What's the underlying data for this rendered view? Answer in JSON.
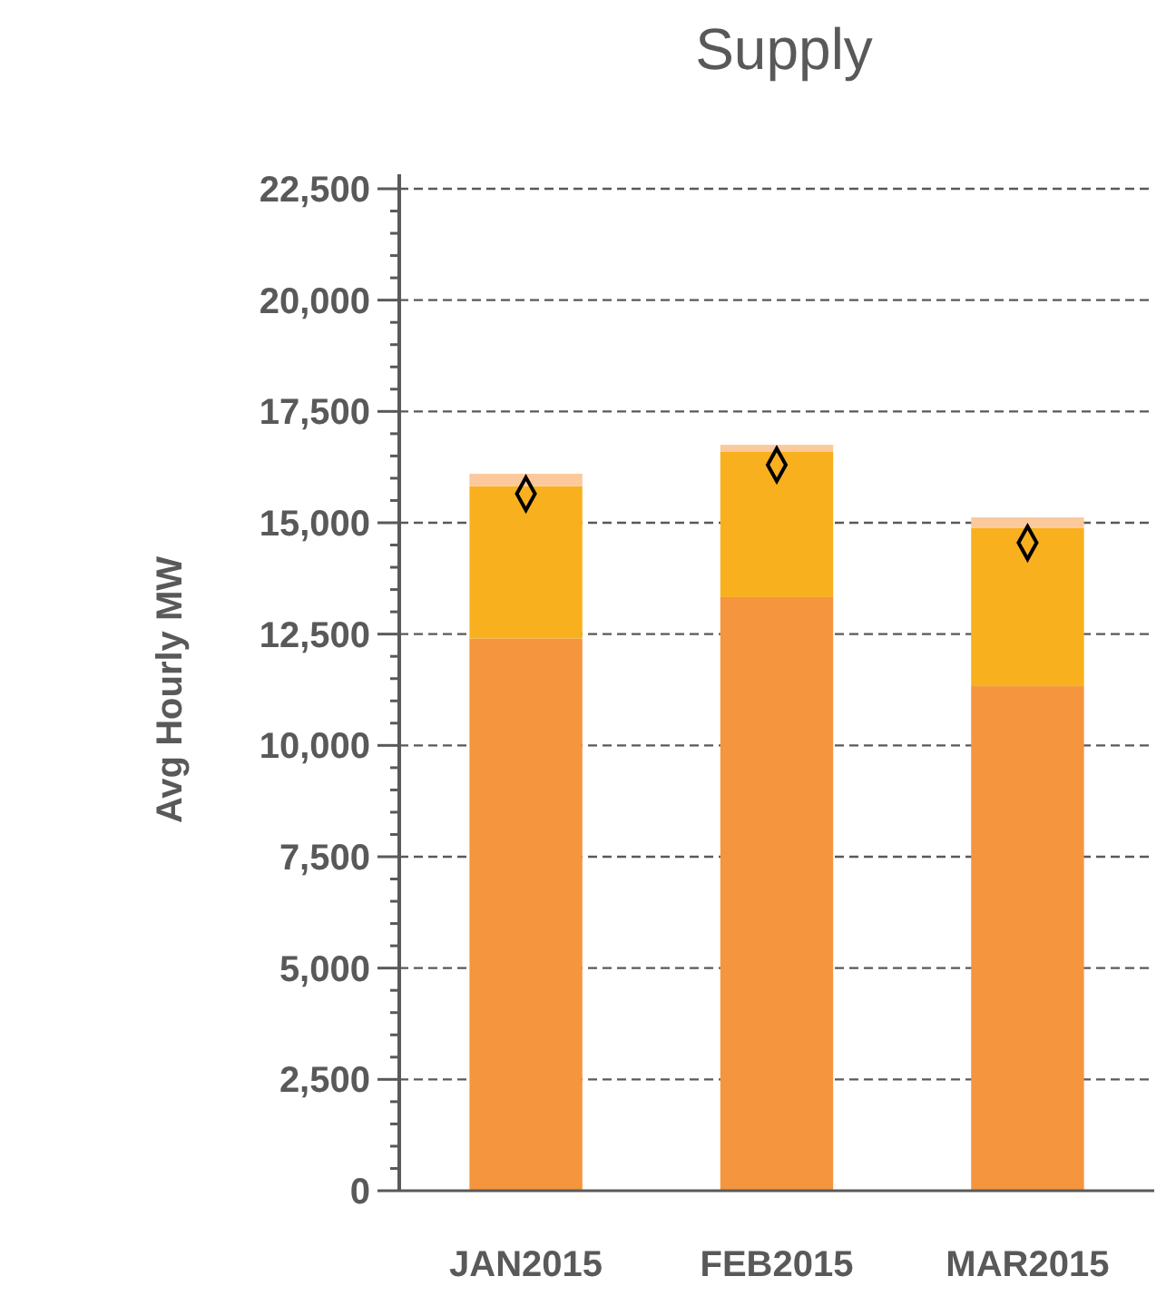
{
  "chart_data": {
    "type": "bar",
    "title": "Supply",
    "ylabel": "Avg Hourly MW",
    "categories": [
      "JAN2015",
      "FEB2015",
      "MAR2015"
    ],
    "stacked": true,
    "grid": "y",
    "ylim": [
      0,
      22500
    ],
    "yticks": [
      0,
      {
        "value": 500,
        "label": null
      },
      {
        "value": 1000,
        "label": null
      },
      {
        "value": 1500,
        "label": null
      },
      {
        "value": 2000,
        "label": null
      },
      {
        "value": 2500,
        "label": "2,500"
      },
      {
        "value": 3000,
        "label": null
      },
      {
        "value": 3500,
        "label": null
      },
      {
        "value": 4000,
        "label": null
      },
      {
        "value": 4500,
        "label": null
      },
      {
        "value": 5000,
        "label": "5,000"
      },
      {
        "value": 5500,
        "label": null
      },
      {
        "value": 6000,
        "label": null
      },
      {
        "value": 6500,
        "label": null
      },
      {
        "value": 7000,
        "label": null
      },
      {
        "value": 7500,
        "label": "7,500"
      },
      {
        "value": 8000,
        "label": null
      },
      {
        "value": 8500,
        "label": null
      },
      {
        "value": 9000,
        "label": null
      },
      {
        "value": 9500,
        "label": null
      },
      {
        "value": 10000,
        "label": "10,000"
      },
      {
        "value": 10500,
        "label": null
      },
      {
        "value": 11000,
        "label": null
      },
      {
        "value": 11500,
        "label": null
      },
      {
        "value": 12000,
        "label": null
      },
      {
        "value": 12500,
        "label": "12,500"
      },
      {
        "value": 13000,
        "label": null
      },
      {
        "value": 13500,
        "label": null
      },
      {
        "value": 14000,
        "label": null
      },
      {
        "value": 14500,
        "label": null
      },
      {
        "value": 15000,
        "label": "15,000"
      },
      {
        "value": 15500,
        "label": null
      },
      {
        "value": 16000,
        "label": null
      },
      {
        "value": 16500,
        "label": null
      },
      {
        "value": 17000,
        "label": null
      },
      {
        "value": 17500,
        "label": "17,500"
      },
      {
        "value": 18000,
        "label": null
      },
      {
        "value": 18500,
        "label": null
      },
      {
        "value": 19000,
        "label": null
      },
      {
        "value": 19500,
        "label": null
      },
      {
        "value": 20000,
        "label": "20,000"
      },
      {
        "value": 20500,
        "label": null
      },
      {
        "value": 21000,
        "label": null
      },
      {
        "value": 21500,
        "label": null
      },
      {
        "value": 22000,
        "label": null
      },
      {
        "value": 22500,
        "label": "22,500"
      }
    ],
    "series": [
      {
        "color": "#f5953e",
        "values": [
          12400,
          13330,
          11330
        ]
      },
      {
        "color": "#f9b01e",
        "values": [
          3420,
          3260,
          3550
        ]
      },
      {
        "color": "#fbc99c",
        "values": [
          280,
          160,
          240
        ]
      },
      {
        "type": "scatter",
        "marker": "diamond",
        "color": "#000000",
        "x": [
          "JAN2015",
          "FEB2015",
          "MAR2015"
        ],
        "values": [
          15650,
          16300,
          14550
        ]
      }
    ]
  }
}
